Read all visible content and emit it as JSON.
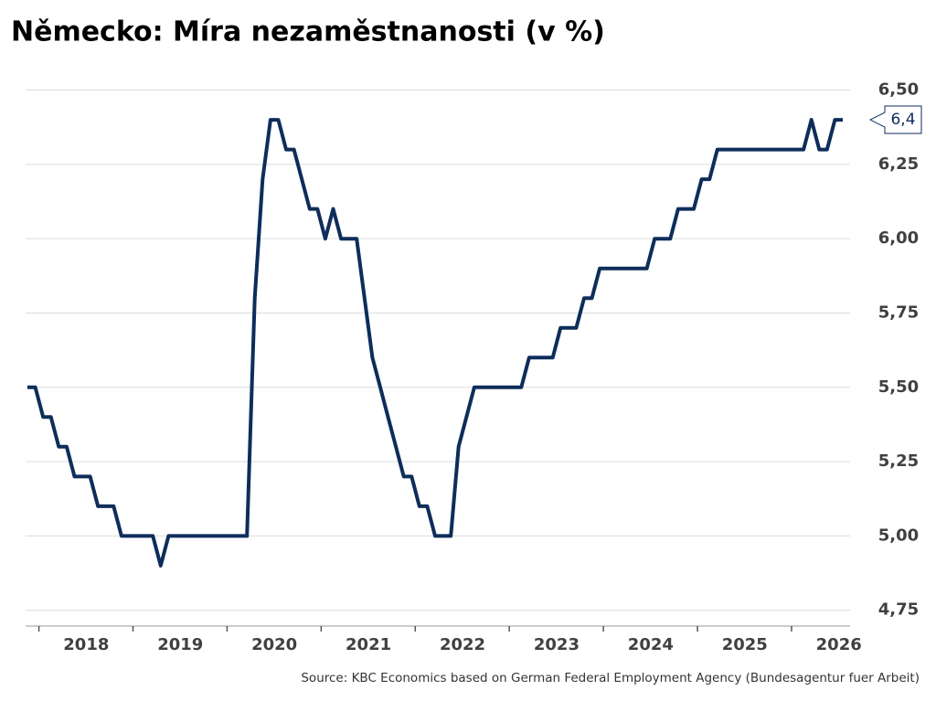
{
  "chart_data": {
    "type": "line",
    "title": "Německo: Míra nezaměstnanosti (v %)",
    "source": "Source: KBC Economics based on German Federal Employment Agency (Bundesagentur fuer Arbeit)",
    "categories": [
      null,
      null,
      null,
      null,
      null,
      null,
      null,
      "2018",
      null,
      null,
      null,
      null,
      null,
      null,
      null,
      null,
      null,
      null,
      null,
      "2019",
      null,
      null,
      null,
      null,
      null,
      null,
      null,
      null,
      null,
      null,
      null,
      "2020",
      null,
      null,
      null,
      null,
      null,
      null,
      null,
      null,
      null,
      null,
      null,
      "2021",
      null,
      null,
      null,
      null,
      null,
      null,
      null,
      null,
      null,
      null,
      null,
      "2022",
      null,
      null,
      null,
      null,
      null,
      null,
      null,
      null,
      null,
      null,
      null,
      "2023",
      null,
      null,
      null,
      null,
      null,
      null,
      null,
      null,
      null,
      null,
      null,
      "2024",
      null,
      null,
      null,
      null,
      null,
      null,
      null,
      null,
      null,
      null,
      null,
      "2025",
      null,
      null,
      null,
      null,
      null,
      null,
      null,
      null,
      null,
      null,
      null,
      "2026",
      null
    ],
    "series": [
      {
        "name": "Míra nezaměstnanosti",
        "color": "#0e2d5a",
        "values": [
          5.5,
          5.5,
          5.4,
          5.4,
          5.3,
          5.3,
          5.2,
          5.2,
          5.2,
          5.1,
          5.1,
          5.1,
          5.0,
          5.0,
          5.0,
          5.0,
          5.0,
          4.9,
          5.0,
          5.0,
          5.0,
          5.0,
          5.0,
          5.0,
          5.0,
          5.0,
          5.0,
          5.0,
          5.0,
          5.8,
          6.2,
          6.4,
          6.4,
          6.3,
          6.3,
          6.2,
          6.1,
          6.1,
          6.0,
          6.1,
          6.0,
          6.0,
          6.0,
          5.8,
          5.6,
          5.5,
          5.4,
          5.3,
          5.2,
          5.2,
          5.1,
          5.1,
          5.0,
          5.0,
          5.0,
          5.3,
          5.4,
          5.5,
          5.5,
          5.5,
          5.5,
          5.5,
          5.5,
          5.5,
          5.6,
          5.6,
          5.6,
          5.6,
          5.7,
          5.7,
          5.7,
          5.8,
          5.8,
          5.9,
          5.9,
          5.9,
          5.9,
          5.9,
          5.9,
          5.9,
          6.0,
          6.0,
          6.0,
          6.1,
          6.1,
          6.1,
          6.2,
          6.2,
          6.3,
          6.3,
          6.3,
          6.3,
          6.3,
          6.3,
          6.3,
          6.3,
          6.3,
          6.3,
          6.3,
          6.3,
          6.4,
          6.3,
          6.3,
          6.4,
          6.4
        ],
        "value_labels": [
          null,
          null,
          null,
          null,
          null,
          null,
          null,
          null,
          null,
          null,
          null,
          null,
          null,
          null,
          null,
          null,
          null,
          null,
          null,
          null,
          null,
          null,
          null,
          null,
          null,
          null,
          null,
          null,
          null,
          null,
          null,
          null,
          null,
          null,
          null,
          null,
          null,
          null,
          null,
          null,
          null,
          null,
          null,
          null,
          null,
          null,
          null,
          null,
          null,
          null,
          null,
          null,
          null,
          null,
          null,
          null,
          null,
          null,
          null,
          null,
          null,
          null,
          null,
          null,
          null,
          null,
          null,
          null,
          null,
          null,
          null,
          null,
          null,
          null,
          null,
          null,
          null,
          null,
          null,
          null,
          null,
          null,
          null,
          null,
          null,
          null,
          null,
          null,
          null,
          null,
          null,
          null,
          null,
          null,
          null,
          null,
          null,
          null,
          null,
          null,
          null,
          null,
          null,
          null,
          "6,4"
        ]
      }
    ],
    "ylim": [
      4.7,
      6.6
    ],
    "yticks": [
      {
        "value": 4.75,
        "label": "4,75"
      },
      {
        "value": 5.0,
        "label": "5,00"
      },
      {
        "value": 5.25,
        "label": "5,25"
      },
      {
        "value": 5.5,
        "label": "5,50"
      },
      {
        "value": 5.75,
        "label": "5,75"
      },
      {
        "value": 6.0,
        "label": "6,00"
      },
      {
        "value": 6.25,
        "label": "6,25"
      },
      {
        "value": 6.5,
        "label": "6,50"
      }
    ],
    "grid": true
  }
}
